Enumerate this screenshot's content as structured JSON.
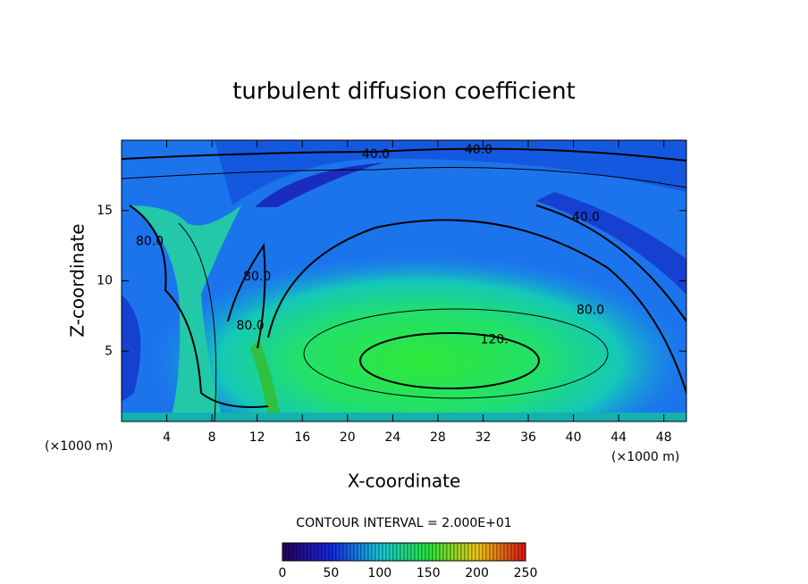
{
  "chart_data": {
    "type": "contour",
    "title": "turbulent diffusion coefficient",
    "x_label": "X-coordinate",
    "y_label": "Z-coordinate",
    "x_unit": "(×1000 m)",
    "y_unit": "(×1000 m)",
    "xlim": [
      0,
      50
    ],
    "xticks": [
      4,
      8,
      12,
      16,
      20,
      24,
      28,
      32,
      36,
      40,
      44,
      48
    ],
    "ylim": [
      0,
      20
    ],
    "yticks": [
      5,
      10,
      15
    ],
    "contour_interval": "CONTOUR INTERVAL = 2.000E+01",
    "contour_labels": [
      {
        "value": 40,
        "label": "40.0",
        "x": 22.5,
        "y": 19.0
      },
      {
        "value": 40,
        "label": "40.0",
        "x": 31.6,
        "y": 19.3
      },
      {
        "value": 40,
        "label": "40.0",
        "x": 41.1,
        "y": 14.5
      },
      {
        "value": 80,
        "label": "80.0",
        "x": 2.5,
        "y": 12.8
      },
      {
        "value": 80,
        "label": "80.0",
        "x": 12.0,
        "y": 10.3
      },
      {
        "value": 80,
        "label": "80.0",
        "x": 11.4,
        "y": 6.8
      },
      {
        "value": 80,
        "label": "80.0",
        "x": 41.5,
        "y": 7.9
      },
      {
        "value": 120,
        "label": "120.",
        "x": 33.0,
        "y": 5.8
      }
    ],
    "colorbar": {
      "lim": [
        0,
        250
      ],
      "ticks": [
        0,
        50,
        100,
        150,
        200,
        250
      ]
    }
  }
}
